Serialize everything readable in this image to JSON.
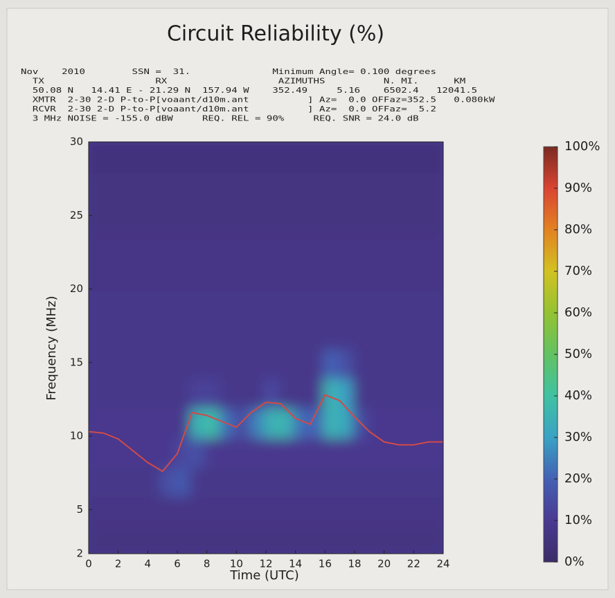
{
  "chart_data": {
    "type": "heatmap",
    "title": "Circuit Reliability (%)",
    "header_lines": [
      "Nov    2010        SSN =  31.              Minimum Angle= 0.100 degrees",
      "  TX                   RX                   AZIMUTHS          N. MI.      KM",
      "  50.08 N   14.41 E - 21.29 N  157.94 W    352.49     5.16    6502.4   12041.5",
      "  XMTR  2-30 2-D P-to-P[voaant/d10m.ant          ] Az=  0.0 OFFaz=352.5   0.080kW",
      "  RCVR  2-30 2-D P-to-P[voaant/d10m.ant          ] Az=  0.0 OFFaz=  5.2",
      "  3 MHz NOISE = -155.0 dBW     REQ. REL = 90%     REQ. SNR = 24.0 dB"
    ],
    "x_label": "Time (UTC)",
    "y_label": "Frequency (MHz)",
    "xlim": [
      0,
      24
    ],
    "xticks": [
      0,
      2,
      4,
      6,
      8,
      10,
      12,
      14,
      16,
      18,
      20,
      22,
      24
    ],
    "ylim": [
      2,
      30
    ],
    "yticks": [
      2,
      5,
      10,
      15,
      20,
      25,
      30
    ],
    "x_bins": [
      0,
      1,
      2,
      3,
      4,
      5,
      6,
      7,
      8,
      9,
      10,
      11,
      12,
      13,
      14,
      15,
      16,
      17,
      18,
      19,
      20,
      21,
      22,
      23,
      24
    ],
    "y_bins": [
      2,
      4,
      6,
      8,
      10,
      12,
      14,
      16,
      18,
      20,
      22,
      24,
      26,
      28,
      30
    ],
    "z": [
      [
        6,
        6,
        6,
        6,
        6,
        6,
        6,
        6,
        6,
        6,
        6,
        6,
        6,
        6,
        6,
        6,
        6,
        6,
        6,
        6,
        6,
        6,
        6,
        6
      ],
      [
        7,
        7,
        7,
        7,
        7,
        7,
        7,
        7,
        7,
        7,
        7,
        7,
        7,
        7,
        7,
        7,
        7,
        7,
        7,
        7,
        7,
        7,
        7,
        7
      ],
      [
        8,
        8,
        8,
        8,
        8,
        16,
        18,
        8,
        8,
        8,
        8,
        8,
        8,
        8,
        8,
        8,
        8,
        8,
        8,
        8,
        8,
        8,
        8,
        8
      ],
      [
        9,
        9,
        9,
        9,
        9,
        9,
        14,
        16,
        9,
        9,
        9,
        9,
        9,
        9,
        9,
        9,
        9,
        9,
        9,
        9,
        9,
        9,
        9,
        9
      ],
      [
        9,
        9,
        9,
        9,
        9,
        9,
        9,
        35,
        38,
        22,
        14,
        25,
        35,
        35,
        22,
        20,
        35,
        32,
        15,
        9,
        9,
        9,
        9,
        9
      ],
      [
        8,
        8,
        8,
        8,
        8,
        8,
        8,
        12,
        12,
        8,
        8,
        8,
        14,
        8,
        8,
        8,
        35,
        30,
        8,
        8,
        8,
        8,
        8,
        8
      ],
      [
        8,
        8,
        8,
        8,
        8,
        8,
        8,
        8,
        8,
        8,
        8,
        8,
        8,
        8,
        8,
        8,
        20,
        16,
        8,
        8,
        8,
        8,
        8,
        8
      ],
      [
        8,
        8,
        8,
        8,
        8,
        8,
        8,
        8,
        8,
        8,
        8,
        8,
        8,
        8,
        8,
        8,
        8,
        8,
        8,
        8,
        8,
        8,
        8,
        8
      ],
      [
        8,
        8,
        8,
        8,
        8,
        8,
        8,
        8,
        8,
        8,
        8,
        8,
        8,
        8,
        8,
        8,
        8,
        8,
        8,
        8,
        8,
        8,
        8,
        8
      ],
      [
        7,
        7,
        7,
        7,
        7,
        7,
        7,
        7,
        7,
        7,
        7,
        7,
        7,
        7,
        7,
        7,
        7,
        7,
        7,
        7,
        7,
        7,
        7,
        7
      ],
      [
        7,
        7,
        7,
        7,
        7,
        7,
        7,
        7,
        7,
        7,
        7,
        7,
        7,
        7,
        7,
        7,
        7,
        7,
        7,
        7,
        7,
        7,
        7,
        7
      ],
      [
        6,
        6,
        6,
        6,
        6,
        6,
        6,
        6,
        6,
        6,
        6,
        6,
        6,
        6,
        6,
        6,
        6,
        6,
        6,
        6,
        6,
        6,
        6,
        6
      ],
      [
        6,
        6,
        6,
        6,
        6,
        6,
        6,
        6,
        6,
        6,
        6,
        6,
        6,
        6,
        6,
        6,
        6,
        6,
        6,
        6,
        6,
        6,
        6,
        6
      ],
      [
        5,
        5,
        5,
        5,
        5,
        5,
        5,
        5,
        5,
        5,
        5,
        5,
        5,
        5,
        5,
        5,
        5,
        5,
        5,
        5,
        5,
        5,
        5,
        5
      ]
    ],
    "muf": {
      "color": "#d24a48",
      "x": [
        0,
        1,
        2,
        3,
        4,
        5,
        6,
        7,
        8,
        9,
        10,
        11,
        12,
        13,
        14,
        15,
        16,
        17,
        18,
        19,
        20,
        21,
        22,
        23,
        24
      ],
      "values": [
        10.3,
        10.2,
        9.8,
        9,
        8.2,
        7.6,
        8.8,
        11.6,
        11.4,
        11,
        10.6,
        11.6,
        12.3,
        12.2,
        11.2,
        10.8,
        12.8,
        12.4,
        11.3,
        10.3,
        9.6,
        9.4,
        9.4,
        9.6,
        9.6
      ]
    },
    "colormap": [
      {
        "value": 0,
        "color": "#3b2c68"
      },
      {
        "value": 10,
        "color": "#4a3a92"
      },
      {
        "value": 20,
        "color": "#4460b4"
      },
      {
        "value": 30,
        "color": "#3aa2c4"
      },
      {
        "value": 40,
        "color": "#40c2a2"
      },
      {
        "value": 50,
        "color": "#62c262"
      },
      {
        "value": 60,
        "color": "#94c232"
      },
      {
        "value": 70,
        "color": "#d2c222"
      },
      {
        "value": 80,
        "color": "#e28222"
      },
      {
        "value": 90,
        "color": "#da4432"
      },
      {
        "value": 100,
        "color": "#7a2a22"
      }
    ],
    "cticks": [
      {
        "value": 0,
        "label": "0%"
      },
      {
        "value": 10,
        "label": "10%"
      },
      {
        "value": 20,
        "label": "20%"
      },
      {
        "value": 30,
        "label": "30%"
      },
      {
        "value": 40,
        "label": "40%"
      },
      {
        "value": 50,
        "label": "50%"
      },
      {
        "value": 60,
        "label": "60%"
      },
      {
        "value": 70,
        "label": "70%"
      },
      {
        "value": 80,
        "label": "80%"
      },
      {
        "value": 90,
        "label": "90%"
      },
      {
        "value": 100,
        "label": "100%"
      }
    ]
  }
}
